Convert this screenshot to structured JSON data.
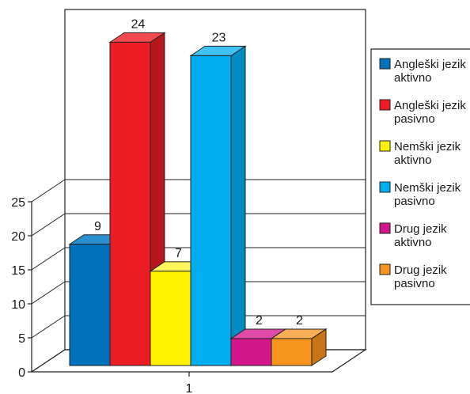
{
  "chart_data": {
    "type": "bar",
    "three_d": true,
    "categories": [
      "1"
    ],
    "ylim": [
      0,
      25
    ],
    "yticks": [
      "0",
      "5",
      "10",
      "15",
      "20",
      "25"
    ],
    "grid": true,
    "legend_position": "right",
    "series": [
      {
        "name": "Angleški jezik aktivno",
        "label_lines": [
          "Angleški jezik",
          "aktivno"
        ],
        "value": 9,
        "label": "9",
        "color": "#0271bb",
        "side": "#015a95",
        "top": "#2a8fd0"
      },
      {
        "name": "Angleški jezik pasivno",
        "label_lines": [
          "Angleški jezik",
          "pasivno"
        ],
        "value": 24,
        "label": "24",
        "color": "#ed1c24",
        "side": "#b8161c",
        "top": "#f24a50"
      },
      {
        "name": "Nemški jezik aktivno",
        "label_lines": [
          "Nemški jezik",
          "aktivno"
        ],
        "value": 7,
        "label": "7",
        "color": "#fff200",
        "side": "#cfc400",
        "top": "#fff75a"
      },
      {
        "name": "Nemški jezik pasivno",
        "label_lines": [
          "Nemški jezik",
          "pasivno"
        ],
        "value": 23,
        "label": "23",
        "color": "#00aeef",
        "side": "#008cc2",
        "top": "#40c3f3"
      },
      {
        "name": "Drug jezik aktivno",
        "label_lines": [
          "Drug jezik",
          "aktivno"
        ],
        "value": 2,
        "label": "2",
        "color": "#d4168c",
        "side": "#a91170",
        "top": "#e04ba8"
      },
      {
        "name": "Drug jezik pasivno",
        "label_lines": [
          "Drug jezik",
          "pasivno"
        ],
        "value": 2,
        "label": "2",
        "color": "#f7941d",
        "side": "#c77516",
        "top": "#f9ae55"
      }
    ]
  }
}
